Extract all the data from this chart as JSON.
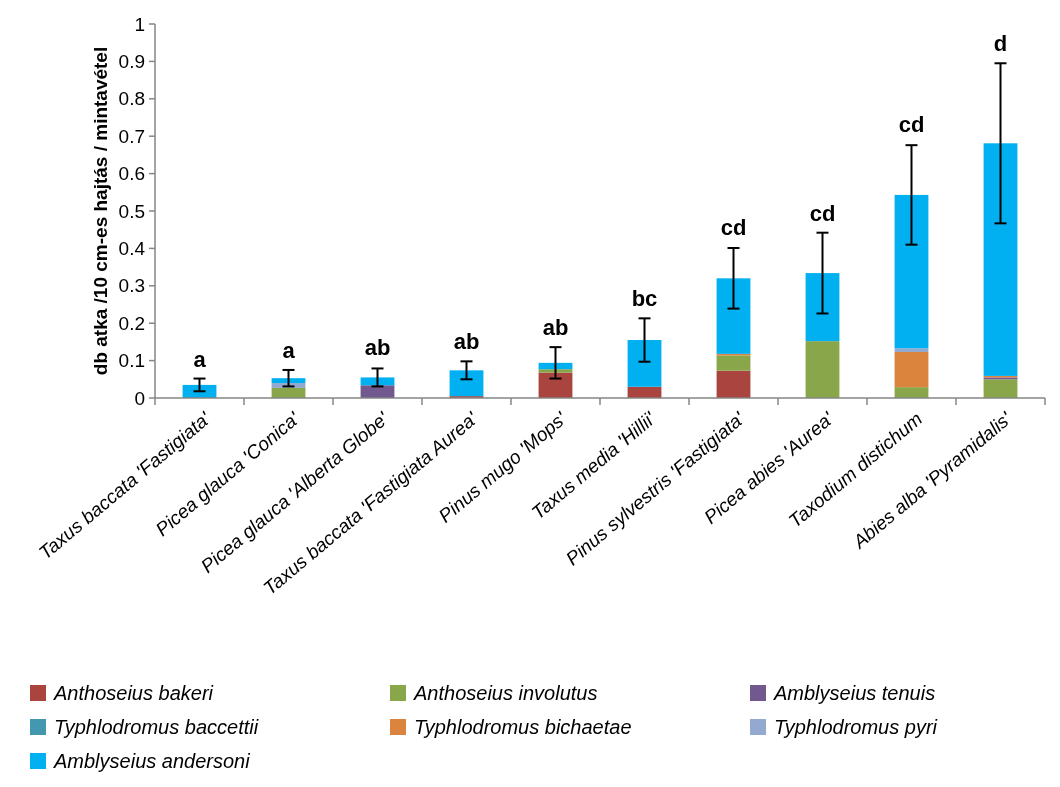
{
  "chart_data": {
    "type": "bar",
    "stacked": true,
    "ylabel": "db atka /10 cm-es hajtás / mintavétel",
    "categories": [
      "Taxus baccata 'Fastigiata'",
      "Picea glauca 'Conica'",
      "Picea glauca 'Alberta Globe'",
      "Taxus baccata 'Fastigiata Aurea'",
      "Pinus mugo 'Mops'",
      "Taxus media 'Hillii'",
      "Pinus sylvestris 'Fastigiata'",
      "Picea abies 'Aurea'",
      "Taxodium distichum",
      "Abies alba 'Pyramidalis'"
    ],
    "series": [
      {
        "name": "Anthoseius bakeri",
        "color": "#a9443f",
        "values": [
          0,
          0,
          0,
          0.005,
          0.068,
          0.03,
          0.073,
          0,
          null,
          null
        ]
      },
      {
        "name": "Anthoseius involutus",
        "color": "#8aa64a",
        "values": [
          0,
          0.027,
          0,
          0,
          0.009,
          0,
          0.041,
          0.152,
          0.029,
          0.05
        ]
      },
      {
        "name": "Amblyseius tenuis",
        "color": "#71588f",
        "values": [
          0,
          0,
          0.034,
          0,
          0,
          0,
          0,
          0,
          0,
          0.005
        ]
      },
      {
        "name": "Typhlodromus baccettii",
        "color": "#4198af",
        "values": [
          0,
          0,
          0,
          0,
          0,
          0,
          null,
          0,
          0,
          0
        ]
      },
      {
        "name": "Typhlodromus bichaetae",
        "color": "#db843d",
        "values": [
          0,
          0,
          0,
          0,
          0,
          0,
          0.004,
          0,
          0.094,
          0.004
        ]
      },
      {
        "name": "Typhlodromus pyri",
        "color": "#93a9cf",
        "values": [
          0,
          0.013,
          null,
          0,
          0,
          0,
          0,
          0,
          0.01,
          0
        ]
      },
      {
        "name": "Amblyseius andersoni",
        "color": "#00b0f0",
        "values": [
          0.035,
          0.013,
          0.021,
          0.069,
          0.017,
          0.125,
          0.202,
          0.182,
          0.41,
          0.622
        ],
        "errors": [
          0.017,
          0.022,
          0.024,
          0.024,
          0.042,
          0.058,
          0.081,
          0.108,
          0.133,
          0.214
        ]
      }
    ],
    "ylim": [
      0,
      1
    ],
    "yticks": [
      0,
      0.1,
      0.2,
      0.3,
      0.4,
      0.5,
      0.6,
      0.7,
      0.8,
      0.9,
      1
    ],
    "grid": false,
    "legend": "bottom",
    "annotations": [
      {
        "text": "a",
        "x": "Taxus baccata 'Fastigiata'",
        "y": 0.052
      },
      {
        "text": "a",
        "x": "Picea glauca 'Conica'",
        "y": 0.075
      },
      {
        "text": "ab",
        "x": "Picea glauca 'Alberta Globe'",
        "y": 0.083
      },
      {
        "text": "ab",
        "x": "Taxus baccata 'Fastigiata Aurea'",
        "y": 0.098
      },
      {
        "text": "ab",
        "x": "Pinus mugo 'Mops'",
        "y": 0.136
      },
      {
        "text": "bc",
        "x": "Taxus media 'Hillii'",
        "y": 0.213
      },
      {
        "text": "cd",
        "x": "Pinus sylvestris 'Fastigiata'",
        "y": 0.403
      },
      {
        "text": "cd",
        "x": "Picea abies 'Aurea'",
        "y": 0.442
      },
      {
        "text": "cd",
        "x": "Taxodium distichum",
        "y": 0.679
      },
      {
        "text": "d",
        "x": "Abies alba 'Pyramidalis'",
        "y": 0.897
      }
    ]
  }
}
